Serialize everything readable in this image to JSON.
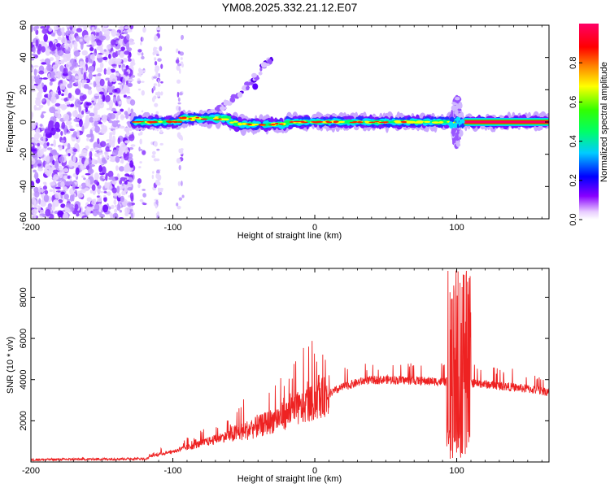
{
  "title": "YM08.2025.332.21.12.E07",
  "chart_data": [
    {
      "type": "heatmap",
      "name": "spectrogram",
      "xlabel": "Height of straight line (km)",
      "ylabel": "Frequency (Hz)",
      "xlim": [
        -200,
        165
      ],
      "ylim": [
        -60,
        60
      ],
      "xticks": [
        -200,
        -100,
        0,
        100
      ],
      "yticks": [
        -60,
        -40,
        -20,
        0,
        20,
        40,
        60
      ],
      "colorbar": {
        "label": "Normalized spectral amplitude",
        "range": [
          0,
          1
        ],
        "ticks": [
          "0.0",
          "0.2",
          "0.4",
          "0.6",
          "0.8"
        ],
        "tick_values": [
          0,
          0.2,
          0.4,
          0.6,
          0.8
        ],
        "colormap": [
          "#ffffff",
          "#8800ff",
          "#0000ff",
          "#00ffff",
          "#00ff00",
          "#ffff00",
          "#ff8800",
          "#ff0000",
          "#ff0066"
        ]
      },
      "features": {
        "noise_region_x": [
          -200,
          -128
        ],
        "sparse_noise_x": [
          -128,
          -90
        ],
        "band_center_freq": 0,
        "band_start_x": -128,
        "band_end_x": 165,
        "strong_band_x": [
          105,
          165
        ],
        "upward_branch": {
          "x": [
            -75,
            -30
          ],
          "freq": [
            5,
            40
          ]
        },
        "burst_x": 100
      }
    },
    {
      "type": "line",
      "name": "snr",
      "xlabel": "Height of straight line (km)",
      "ylabel": "SNR (10 * v/v)",
      "xlim": [
        -200,
        165
      ],
      "ylim": [
        0,
        9400
      ],
      "xticks": [
        -200,
        -100,
        0,
        100
      ],
      "yticks": [
        2000,
        4000,
        6000,
        8000
      ],
      "color": "#ee2222",
      "envelope": [
        {
          "x": -200,
          "y": 50
        },
        {
          "x": -120,
          "y": 100
        },
        {
          "x": -115,
          "y": 300
        },
        {
          "x": -100,
          "y": 500
        },
        {
          "x": -80,
          "y": 900
        },
        {
          "x": -60,
          "y": 1300
        },
        {
          "x": -40,
          "y": 1700
        },
        {
          "x": -20,
          "y": 2300
        },
        {
          "x": 0,
          "y": 2900
        },
        {
          "x": 10,
          "y": 3300
        },
        {
          "x": 20,
          "y": 3650
        },
        {
          "x": 35,
          "y": 3950
        },
        {
          "x": 50,
          "y": 4000
        },
        {
          "x": 70,
          "y": 3950
        },
        {
          "x": 90,
          "y": 3900
        },
        {
          "x": 100,
          "y": 3900
        },
        {
          "x": 110,
          "y": 3850
        },
        {
          "x": 130,
          "y": 3700
        },
        {
          "x": 150,
          "y": 3550
        },
        {
          "x": 165,
          "y": 3400
        }
      ],
      "burst": {
        "x": [
          93,
          110
        ],
        "peak": 9300,
        "min": 150
      }
    }
  ]
}
